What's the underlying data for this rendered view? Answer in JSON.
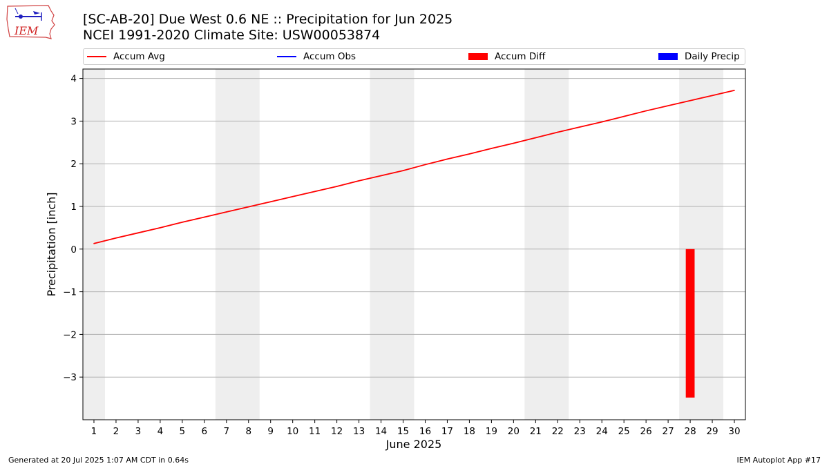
{
  "header": {
    "title_line1": "[SC-AB-20] Due West 0.6 NE :: Precipitation for Jun 2025",
    "title_line2": "NCEI 1991-2020 Climate Site: USW00053874",
    "logo_text": "IEM"
  },
  "footer": {
    "generated": "Generated at 20 Jul 2025 1:07 AM CDT in 0.64s",
    "app": "IEM Autoplot App #17"
  },
  "legend": [
    {
      "label": "Accum Avg",
      "kind": "line",
      "color": "#ff0000"
    },
    {
      "label": "Accum Obs",
      "kind": "line",
      "color": "#0000ff"
    },
    {
      "label": "Accum Diff",
      "kind": "box",
      "color": "#ff0000"
    },
    {
      "label": "Daily Precip",
      "kind": "box",
      "color": "#0000ff"
    }
  ],
  "chart_data": {
    "type": "line",
    "xlabel": "June 2025",
    "ylabel": "Precipitation [inch]",
    "xlim": [
      0.5,
      30.5
    ],
    "ylim": [
      -4.0,
      4.22
    ],
    "x_ticks": [
      1,
      2,
      3,
      4,
      5,
      6,
      7,
      8,
      9,
      10,
      11,
      12,
      13,
      14,
      15,
      16,
      17,
      18,
      19,
      20,
      21,
      22,
      23,
      24,
      25,
      26,
      27,
      28,
      29,
      30
    ],
    "y_ticks": [
      -3,
      -2,
      -1,
      0,
      1,
      2,
      3,
      4
    ],
    "y_tick_labels": [
      "−3",
      "−2",
      "−1",
      "0",
      "1",
      "2",
      "3",
      "4"
    ],
    "grid": "y",
    "weekend_shading": [
      [
        0.5,
        1.5
      ],
      [
        6.5,
        8.5
      ],
      [
        13.5,
        15.5
      ],
      [
        20.5,
        22.5
      ],
      [
        27.5,
        29.5
      ]
    ],
    "shading_color": "#eeeeee",
    "series": [
      {
        "name": "Accum Avg",
        "type": "line",
        "color": "#ff0000",
        "x": [
          1,
          2,
          3,
          4,
          5,
          6,
          7,
          8,
          9,
          10,
          11,
          12,
          13,
          14,
          15,
          16,
          17,
          18,
          19,
          20,
          21,
          22,
          23,
          24,
          25,
          26,
          27,
          28,
          29,
          30
        ],
        "values": [
          0.13,
          0.26,
          0.38,
          0.5,
          0.63,
          0.75,
          0.87,
          0.99,
          1.11,
          1.23,
          1.35,
          1.47,
          1.6,
          1.72,
          1.84,
          1.98,
          2.11,
          2.23,
          2.36,
          2.48,
          2.61,
          2.74,
          2.86,
          2.98,
          3.11,
          3.24,
          3.36,
          3.48,
          3.6,
          3.72
        ]
      },
      {
        "name": "Accum Diff",
        "type": "bar",
        "color": "#ff0000",
        "x": [
          28
        ],
        "values": [
          -3.48
        ]
      }
    ]
  }
}
